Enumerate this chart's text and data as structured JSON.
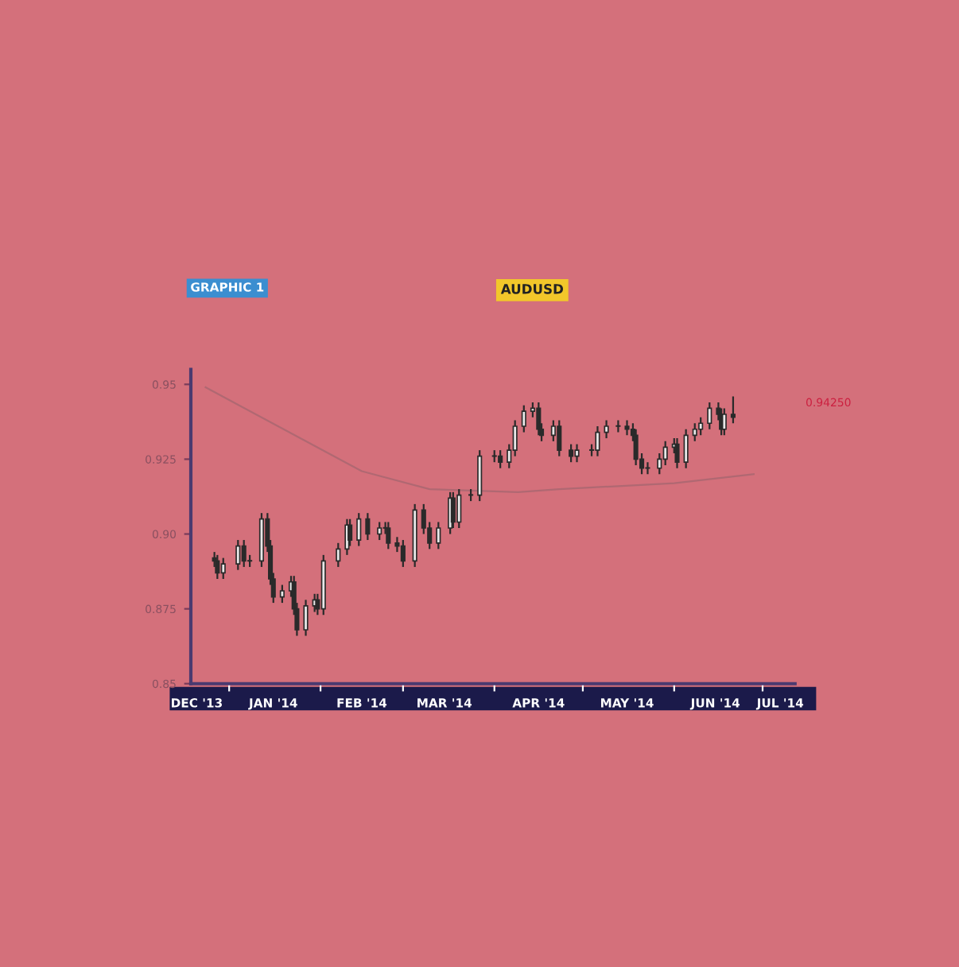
{
  "chart_data": {
    "type": "candlestick",
    "title": "AUDUSD",
    "annotations": [
      "GRAPHIC 1",
      "0.94250"
    ],
    "x": [
      "2013-12-27",
      "2013-12-28",
      "2013-12-30",
      "2014-01-04",
      "2014-01-06",
      "2014-01-08",
      "2014-01-12",
      "2014-01-14",
      "2014-01-15",
      "2014-01-16",
      "2014-01-19",
      "2014-01-22",
      "2014-01-23",
      "2014-01-24",
      "2014-01-27",
      "2014-01-30",
      "2014-01-31",
      "2014-02-02",
      "2014-02-07",
      "2014-02-10",
      "2014-02-11",
      "2014-02-14",
      "2014-02-17",
      "2014-02-21",
      "2014-02-23",
      "2014-02-24",
      "2014-02-27",
      "2014-03-01",
      "2014-03-05",
      "2014-03-08",
      "2014-03-10",
      "2014-03-13",
      "2014-03-17",
      "2014-03-18",
      "2014-03-20",
      "2014-03-24",
      "2014-03-27",
      "2014-04-01",
      "2014-04-03",
      "2014-04-06",
      "2014-04-08",
      "2014-04-11",
      "2014-04-14",
      "2014-04-16",
      "2014-04-17",
      "2014-04-21",
      "2014-04-23",
      "2014-04-27",
      "2014-04-29",
      "2014-05-04",
      "2014-05-06",
      "2014-05-09",
      "2014-05-13",
      "2014-05-16",
      "2014-05-18",
      "2014-05-19",
      "2014-05-21",
      "2014-05-23",
      "2014-05-27",
      "2014-05-29",
      "2014-06-01",
      "2014-06-02",
      "2014-06-05",
      "2014-06-08",
      "2014-06-10",
      "2014-06-13",
      "2014-06-16",
      "2014-06-17",
      "2014-06-18",
      "2014-06-21"
    ],
    "ohlc": [
      [
        0.892,
        0.894,
        0.889,
        0.891
      ],
      [
        0.891,
        0.893,
        0.885,
        0.887
      ],
      [
        0.887,
        0.892,
        0.885,
        0.89
      ],
      [
        0.89,
        0.898,
        0.888,
        0.896
      ],
      [
        0.896,
        0.898,
        0.889,
        0.891
      ],
      [
        0.891,
        0.893,
        0.889,
        0.891
      ],
      [
        0.891,
        0.907,
        0.889,
        0.905
      ],
      [
        0.905,
        0.907,
        0.894,
        0.896
      ],
      [
        0.896,
        0.898,
        0.883,
        0.885
      ],
      [
        0.885,
        0.887,
        0.877,
        0.879
      ],
      [
        0.879,
        0.883,
        0.877,
        0.881
      ],
      [
        0.881,
        0.886,
        0.879,
        0.884
      ],
      [
        0.884,
        0.886,
        0.873,
        0.875
      ],
      [
        0.875,
        0.877,
        0.866,
        0.868
      ],
      [
        0.868,
        0.878,
        0.866,
        0.876
      ],
      [
        0.876,
        0.88,
        0.874,
        0.878
      ],
      [
        0.878,
        0.88,
        0.873,
        0.875
      ],
      [
        0.875,
        0.893,
        0.873,
        0.891
      ],
      [
        0.891,
        0.897,
        0.889,
        0.895
      ],
      [
        0.895,
        0.905,
        0.893,
        0.903
      ],
      [
        0.903,
        0.905,
        0.896,
        0.898
      ],
      [
        0.898,
        0.907,
        0.896,
        0.905
      ],
      [
        0.905,
        0.907,
        0.898,
        0.9
      ],
      [
        0.9,
        0.904,
        0.898,
        0.902
      ],
      [
        0.902,
        0.904,
        0.9,
        0.902
      ],
      [
        0.902,
        0.904,
        0.895,
        0.897
      ],
      [
        0.897,
        0.899,
        0.894,
        0.896
      ],
      [
        0.896,
        0.898,
        0.889,
        0.891
      ],
      [
        0.891,
        0.91,
        0.889,
        0.908
      ],
      [
        0.908,
        0.91,
        0.9,
        0.902
      ],
      [
        0.902,
        0.904,
        0.895,
        0.897
      ],
      [
        0.897,
        0.904,
        0.895,
        0.902
      ],
      [
        0.902,
        0.914,
        0.9,
        0.912
      ],
      [
        0.912,
        0.914,
        0.902,
        0.904
      ],
      [
        0.904,
        0.915,
        0.902,
        0.913
      ],
      [
        0.913,
        0.915,
        0.911,
        0.913
      ],
      [
        0.913,
        0.928,
        0.911,
        0.926
      ],
      [
        0.926,
        0.928,
        0.924,
        0.926
      ],
      [
        0.926,
        0.928,
        0.922,
        0.924
      ],
      [
        0.924,
        0.93,
        0.922,
        0.928
      ],
      [
        0.928,
        0.938,
        0.926,
        0.936
      ],
      [
        0.936,
        0.943,
        0.934,
        0.941
      ],
      [
        0.941,
        0.944,
        0.939,
        0.942
      ],
      [
        0.942,
        0.944,
        0.933,
        0.935
      ],
      [
        0.935,
        0.937,
        0.931,
        0.933
      ],
      [
        0.933,
        0.938,
        0.931,
        0.936
      ],
      [
        0.936,
        0.938,
        0.926,
        0.928
      ],
      [
        0.928,
        0.93,
        0.924,
        0.926
      ],
      [
        0.926,
        0.93,
        0.924,
        0.928
      ],
      [
        0.928,
        0.93,
        0.926,
        0.928
      ],
      [
        0.928,
        0.936,
        0.926,
        0.934
      ],
      [
        0.934,
        0.938,
        0.932,
        0.936
      ],
      [
        0.936,
        0.938,
        0.934,
        0.936
      ],
      [
        0.936,
        0.938,
        0.933,
        0.935
      ],
      [
        0.935,
        0.937,
        0.931,
        0.933
      ],
      [
        0.933,
        0.935,
        0.923,
        0.925
      ],
      [
        0.925,
        0.927,
        0.92,
        0.922
      ],
      [
        0.922,
        0.924,
        0.92,
        0.922
      ],
      [
        0.922,
        0.927,
        0.92,
        0.925
      ],
      [
        0.925,
        0.931,
        0.923,
        0.929
      ],
      [
        0.929,
        0.932,
        0.927,
        0.93
      ],
      [
        0.93,
        0.932,
        0.922,
        0.924
      ],
      [
        0.924,
        0.935,
        0.922,
        0.933
      ],
      [
        0.933,
        0.937,
        0.931,
        0.935
      ],
      [
        0.935,
        0.939,
        0.933,
        0.937
      ],
      [
        0.937,
        0.944,
        0.935,
        0.942
      ],
      [
        0.942,
        0.944,
        0.938,
        0.94
      ],
      [
        0.94,
        0.942,
        0.933,
        0.935
      ],
      [
        0.935,
        0.942,
        0.933,
        0.94
      ],
      [
        0.94,
        0.946,
        0.937,
        0.939
      ]
    ],
    "color": "#2a2a2a",
    "series": [
      {
        "type": "line",
        "color": "#b06872",
        "x": [
          "2013-12-24",
          "2014-02-15",
          "2014-03-10",
          "2014-04-09",
          "2014-04-23",
          "2014-05-13",
          "2014-06-01",
          "2014-06-28"
        ],
        "values": [
          0.949,
          0.921,
          0.915,
          0.914,
          0.915,
          0.916,
          0.917,
          0.92
        ]
      }
    ],
    "xlim": [
      "2013-12-19",
      "2014-07-12"
    ],
    "xticks": [
      {
        "value": "2013-12-21",
        "label": "DEC '13"
      },
      {
        "value": "2014-01-01",
        "label": null
      },
      {
        "value": "2014-01-16",
        "label": "JAN '14"
      },
      {
        "value": "2014-02-01",
        "label": null
      },
      {
        "value": "2014-02-15",
        "label": "FEB '14"
      },
      {
        "value": "2014-03-01",
        "label": null
      },
      {
        "value": "2014-03-15",
        "label": "MAR '14"
      },
      {
        "value": "2014-04-01",
        "label": null
      },
      {
        "value": "2014-04-16",
        "label": "APR '14"
      },
      {
        "value": "2014-05-01",
        "label": null
      },
      {
        "value": "2014-05-16",
        "label": "MAY '14"
      },
      {
        "value": "2014-06-01",
        "label": null
      },
      {
        "value": "2014-06-15",
        "label": "JUN '14"
      },
      {
        "value": "2014-07-01",
        "label": null
      },
      {
        "value": "2014-07-07",
        "label": "JUL '14"
      }
    ],
    "ylim": [
      0.85,
      0.955
    ],
    "yticks": [
      0.85,
      0.875,
      {
        "value": 0.9,
        "label": "0.90"
      },
      0.925,
      0.95
    ],
    "grid": false,
    "legend": false
  }
}
